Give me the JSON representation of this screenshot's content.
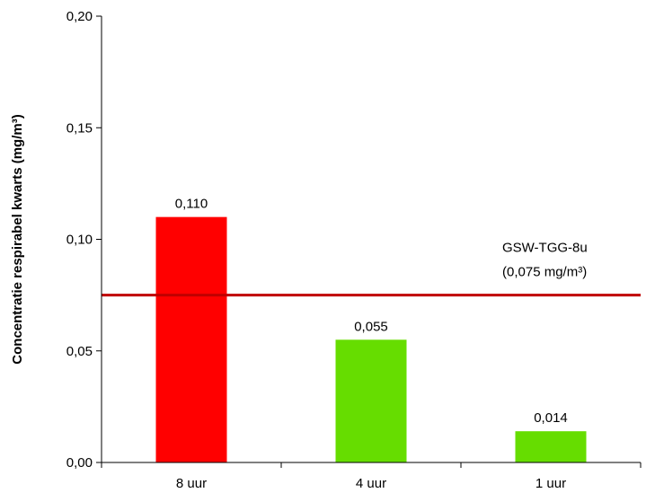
{
  "chart_data": {
    "type": "bar",
    "categories": [
      "8 uur",
      "4 uur",
      "1 uur"
    ],
    "values": [
      0.11,
      0.055,
      0.014
    ],
    "value_labels": [
      "0,110",
      "0,055",
      "0,014"
    ],
    "bar_colors": [
      "#ff0000",
      "#66dd00",
      "#66dd00"
    ],
    "ylabel": "Concentratie respirabel kwarts (mg/m³)",
    "ylim": [
      0,
      0.2
    ],
    "yticks": [
      0.0,
      0.05,
      0.1,
      0.15,
      0.2
    ],
    "ytick_labels": [
      "0,00",
      "0,05",
      "0,10",
      "0,15",
      "0,20"
    ],
    "grid": false,
    "legend": "none",
    "reference_line": {
      "value": 0.075,
      "color": "#c00000",
      "label_line1": "GSW-TGG-8u",
      "label_line2": "(0,075 mg/m³)"
    }
  }
}
